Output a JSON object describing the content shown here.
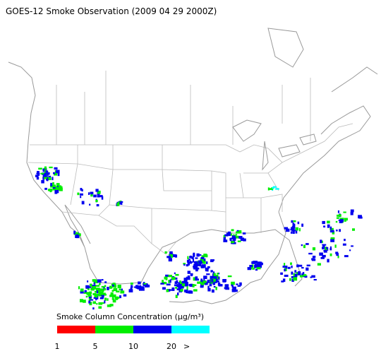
{
  "title": "GOES-12 Smoke Observation (2009 04 29  2000Z)",
  "legend": {
    "label": "Smoke Column Concentration (μg/m³)",
    "colors": [
      "#ff0000",
      "#00ee00",
      "#0000ee",
      "#00ffff"
    ],
    "ticks": [
      1,
      5,
      10,
      20
    ],
    "overflow_label": ">"
  }
}
